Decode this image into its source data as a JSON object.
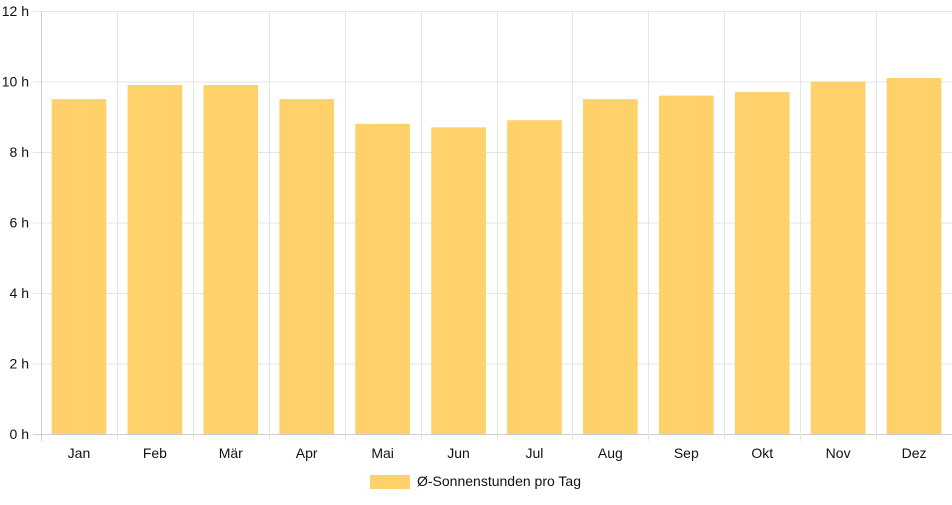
{
  "chart_data": {
    "type": "bar",
    "categories": [
      "Jan",
      "Feb",
      "Mär",
      "Apr",
      "Mai",
      "Jun",
      "Jul",
      "Aug",
      "Sep",
      "Okt",
      "Nov",
      "Dez"
    ],
    "series": [
      {
        "name": "Ø-Sonnenstunden pro Tag",
        "values": [
          9.5,
          9.9,
          9.9,
          9.5,
          8.8,
          8.7,
          8.9,
          9.5,
          9.6,
          9.7,
          10.0,
          10.1
        ]
      }
    ],
    "y_ticks": [
      "0 h",
      "2 h",
      "4 h",
      "6 h",
      "8 h",
      "10 h",
      "12 h"
    ],
    "ylim": [
      0,
      12
    ],
    "grid": true,
    "legend_position": "bottom",
    "colors": {
      "bar": "#fed16a",
      "grid": "#e5e5e5",
      "axis": "#cfcfcf",
      "text": "#111111"
    }
  }
}
